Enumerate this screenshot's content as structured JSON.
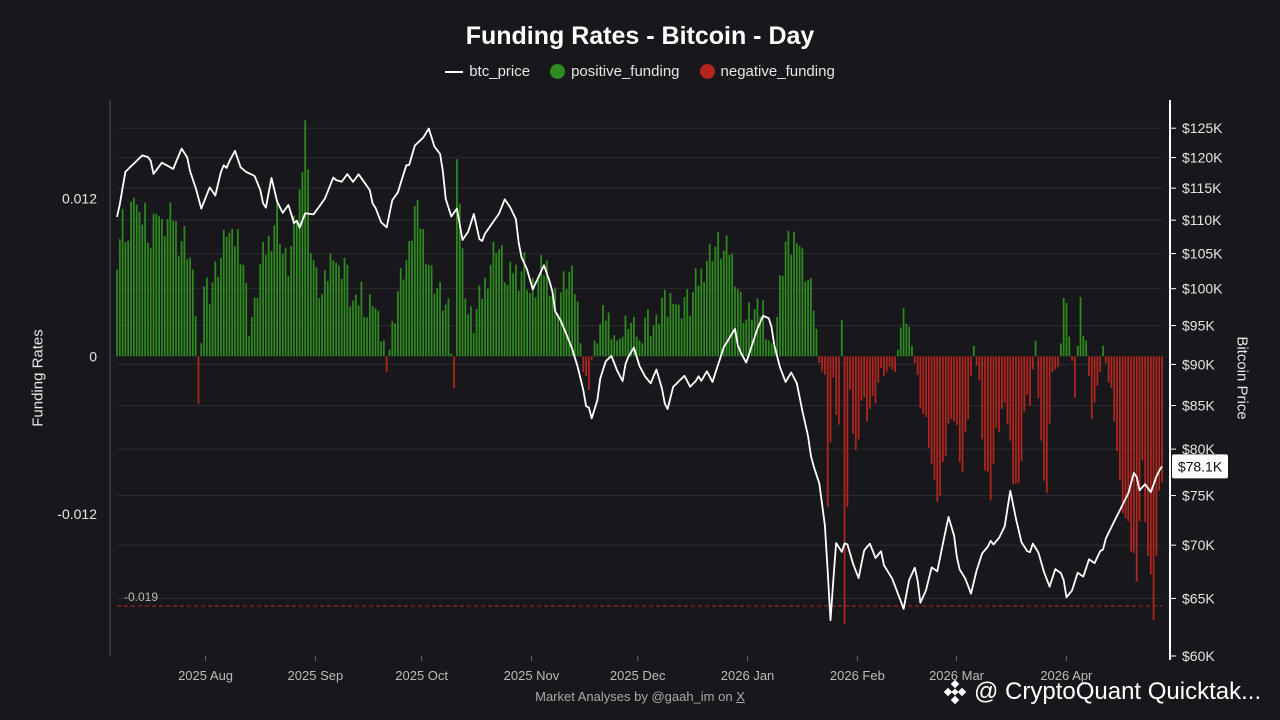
{
  "chart_data": {
    "type": "bar",
    "title": "Funding Rates - Bitcoin - Day",
    "legend": [
      {
        "name": "btc_price",
        "kind": "line",
        "color": "#ffffff"
      },
      {
        "name": "positive_funding",
        "kind": "dot",
        "color": "#2e8b1e"
      },
      {
        "name": "negative_funding",
        "kind": "dot",
        "color": "#b3261e"
      }
    ],
    "ylabel_left": "Funding Rates",
    "ylabel_right": "Bitcoin Price",
    "left_axis": {
      "ticks": [
        0.012,
        0,
        -0.012
      ],
      "tick_labels": [
        "0.012",
        "0",
        "-0.012"
      ],
      "range": [
        -0.0228,
        0.0195
      ]
    },
    "right_axis": {
      "ticks": [
        125000,
        120000,
        115000,
        110000,
        105000,
        100000,
        95000,
        90000,
        85000,
        80000,
        75000,
        70000,
        65000,
        60000
      ],
      "tick_labels": [
        "$125K",
        "$120K",
        "$115K",
        "$110K",
        "$105K",
        "$100K",
        "$95K",
        "$90K",
        "$85K",
        "$80K",
        "$75K",
        "$70K",
        "$65K",
        "$60K"
      ],
      "scale": "log",
      "range": [
        60000,
        130000
      ]
    },
    "x_axis": {
      "start_date": "2025-07-07",
      "days": 295,
      "tick_labels": [
        "2025 Aug",
        "2025 Sep",
        "2025 Oct",
        "2025 Nov",
        "2025 Dec",
        "2026 Jan",
        "2026 Feb",
        "2026 Mar",
        "2026 Apr"
      ]
    },
    "reference_line": {
      "value": -0.019,
      "label": "-0.019"
    },
    "current_price_label": "$78.1K",
    "price_anchors": [
      [
        0,
        110500
      ],
      [
        3,
        118000
      ],
      [
        6,
        119000
      ],
      [
        9,
        120000
      ],
      [
        11,
        119500
      ],
      [
        13,
        118000
      ],
      [
        16,
        119500
      ],
      [
        20,
        118000
      ],
      [
        23,
        121000
      ],
      [
        26,
        118500
      ],
      [
        28,
        115500
      ],
      [
        30,
        112000
      ],
      [
        33,
        115000
      ],
      [
        35,
        113500
      ],
      [
        37,
        117000
      ],
      [
        40,
        120000
      ],
      [
        42,
        121500
      ],
      [
        44,
        118500
      ],
      [
        46,
        117500
      ],
      [
        49,
        116500
      ],
      [
        51,
        114000
      ],
      [
        53,
        112500
      ],
      [
        55,
        117000
      ],
      [
        57,
        113000
      ],
      [
        59,
        111000
      ],
      [
        61,
        112000
      ],
      [
        63,
        109000
      ],
      [
        65,
        109500
      ],
      [
        67,
        111500
      ],
      [
        70,
        111000
      ],
      [
        72,
        112000
      ],
      [
        74,
        113000
      ],
      [
        76,
        115000
      ],
      [
        78,
        117000
      ],
      [
        80,
        116500
      ],
      [
        82,
        117500
      ],
      [
        84,
        116000
      ],
      [
        86,
        117000
      ],
      [
        88,
        115500
      ],
      [
        90,
        114000
      ],
      [
        92,
        112500
      ],
      [
        94,
        110000
      ],
      [
        96,
        109000
      ],
      [
        98,
        113000
      ],
      [
        100,
        114000
      ],
      [
        103,
        118000
      ],
      [
        106,
        122500
      ],
      [
        109,
        123500
      ],
      [
        111,
        124800
      ],
      [
        113,
        121500
      ],
      [
        115,
        120000
      ],
      [
        117,
        114000
      ],
      [
        119,
        111000
      ],
      [
        121,
        112000
      ],
      [
        123,
        107000
      ],
      [
        125,
        108000
      ],
      [
        127,
        110500
      ],
      [
        129,
        106500
      ],
      [
        131,
        108500
      ],
      [
        133,
        109500
      ],
      [
        136,
        111000
      ],
      [
        138,
        113000
      ],
      [
        140,
        111500
      ],
      [
        142,
        109500
      ],
      [
        144,
        105000
      ],
      [
        146,
        103000
      ],
      [
        148,
        100000
      ],
      [
        150,
        101500
      ],
      [
        152,
        103000
      ],
      [
        154,
        100500
      ],
      [
        156,
        97500
      ],
      [
        158,
        96000
      ],
      [
        160,
        94000
      ],
      [
        162,
        92000
      ],
      [
        164,
        89500
      ],
      [
        166,
        86500
      ],
      [
        167,
        84500
      ],
      [
        169,
        84000
      ],
      [
        171,
        86000
      ],
      [
        172,
        88500
      ],
      [
        174,
        90500
      ],
      [
        176,
        91000
      ],
      [
        178,
        89000
      ],
      [
        180,
        87500
      ],
      [
        182,
        91500
      ],
      [
        184,
        92500
      ],
      [
        186,
        90000
      ],
      [
        188,
        88500
      ],
      [
        190,
        87500
      ],
      [
        192,
        89000
      ],
      [
        194,
        86500
      ],
      [
        196,
        85000
      ],
      [
        198,
        87500
      ],
      [
        200,
        88000
      ],
      [
        202,
        88500
      ],
      [
        204,
        87000
      ],
      [
        206,
        87500
      ],
      [
        208,
        88500
      ],
      [
        210,
        89500
      ],
      [
        212,
        88000
      ],
      [
        214,
        90000
      ],
      [
        216,
        92000
      ],
      [
        218,
        93000
      ],
      [
        220,
        94000
      ],
      [
        222,
        92000
      ],
      [
        224,
        90500
      ],
      [
        226,
        92500
      ],
      [
        228,
        94500
      ],
      [
        230,
        96000
      ],
      [
        232,
        95500
      ],
      [
        234,
        93000
      ],
      [
        236,
        90000
      ],
      [
        238,
        88000
      ],
      [
        240,
        89000
      ],
      [
        242,
        87500
      ],
      [
        244,
        84000
      ],
      [
        246,
        81000
      ],
      [
        248,
        78500
      ],
      [
        250,
        76500
      ],
      [
        252,
        72000
      ],
      [
        254,
        63000
      ],
      [
        256,
        70000
      ],
      [
        258,
        69000
      ],
      [
        260,
        70500
      ],
      [
        262,
        68500
      ],
      [
        264,
        67000
      ],
      [
        266,
        69500
      ],
      [
        268,
        70000
      ],
      [
        270,
        68500
      ],
      [
        272,
        69000
      ],
      [
        274,
        68000
      ],
      [
        276,
        67000
      ],
      [
        278,
        65500
      ],
      [
        280,
        64000
      ],
      [
        282,
        66500
      ],
      [
        284,
        67500
      ],
      [
        286,
        65000
      ],
      [
        288,
        66000
      ],
      [
        290,
        68000
      ],
      [
        292,
        67500
      ],
      [
        294,
        70000
      ],
      [
        296,
        72500
      ],
      [
        298,
        70500
      ],
      [
        300,
        68000
      ],
      [
        302,
        67000
      ],
      [
        304,
        65500
      ],
      [
        306,
        67500
      ],
      [
        308,
        69000
      ],
      [
        310,
        69500
      ],
      [
        312,
        70500
      ],
      [
        314,
        71000
      ],
      [
        316,
        72000
      ],
      [
        318,
        75500
      ],
      [
        320,
        72500
      ],
      [
        322,
        70000
      ],
      [
        324,
        69000
      ],
      [
        326,
        70500
      ],
      [
        328,
        69500
      ],
      [
        330,
        67500
      ],
      [
        332,
        66000
      ],
      [
        334,
        67500
      ],
      [
        336,
        67000
      ],
      [
        338,
        65500
      ],
      [
        340,
        66000
      ],
      [
        342,
        67500
      ],
      [
        344,
        67000
      ],
      [
        346,
        68500
      ],
      [
        348,
        68000
      ],
      [
        350,
        69000
      ],
      [
        352,
        71000
      ],
      [
        354,
        72000
      ],
      [
        356,
        73000
      ],
      [
        358,
        74000
      ],
      [
        360,
        75000
      ],
      [
        362,
        77000
      ],
      [
        364,
        76000
      ],
      [
        366,
        76500
      ],
      [
        368,
        75500
      ],
      [
        370,
        77000
      ],
      [
        372,
        78100
      ]
    ],
    "funding_anchors": [
      [
        0,
        0.0078
      ],
      [
        2,
        0.0105
      ],
      [
        4,
        0.0088
      ],
      [
        6,
        0.0128
      ],
      [
        8,
        0.0098
      ],
      [
        10,
        0.0112
      ],
      [
        12,
        0.0085
      ],
      [
        14,
        0.0118
      ],
      [
        16,
        0.0095
      ],
      [
        18,
        0.0102
      ],
      [
        20,
        0.0108
      ],
      [
        22,
        0.0088
      ],
      [
        24,
        0.0092
      ],
      [
        26,
        0.0075
      ],
      [
        28,
        0.0038
      ],
      [
        29,
        -0.0038
      ],
      [
        31,
        0.0058
      ],
      [
        33,
        0.0052
      ],
      [
        35,
        0.0065
      ],
      [
        37,
        0.0075
      ],
      [
        39,
        0.0098
      ],
      [
        41,
        0.0085
      ],
      [
        43,
        0.0092
      ],
      [
        45,
        0.0072
      ],
      [
        47,
        0.0025
      ],
      [
        49,
        0.0035
      ],
      [
        51,
        0.0068
      ],
      [
        53,
        0.0082
      ],
      [
        55,
        0.0092
      ],
      [
        57,
        0.0112
      ],
      [
        59,
        0.0078
      ],
      [
        61,
        0.0068
      ],
      [
        63,
        0.0095
      ],
      [
        65,
        0.0122
      ],
      [
        67,
        0.0182
      ],
      [
        69,
        0.0088
      ],
      [
        71,
        0.0058
      ],
      [
        73,
        0.0045
      ],
      [
        75,
        0.0062
      ],
      [
        77,
        0.0085
      ],
      [
        79,
        0.0062
      ],
      [
        81,
        0.0075
      ],
      [
        83,
        0.0045
      ],
      [
        85,
        0.0035
      ],
      [
        87,
        0.0052
      ],
      [
        89,
        0.0032
      ],
      [
        91,
        0.0048
      ],
      [
        93,
        0.0025
      ],
      [
        95,
        0.0012
      ],
      [
        96,
        -0.0012
      ],
      [
        98,
        0.0022
      ],
      [
        100,
        0.0052
      ],
      [
        102,
        0.0068
      ],
      [
        104,
        0.0078
      ],
      [
        106,
        0.0112
      ],
      [
        108,
        0.0102
      ],
      [
        110,
        0.0082
      ],
      [
        112,
        0.0062
      ],
      [
        114,
        0.0052
      ],
      [
        116,
        0.0042
      ],
      [
        118,
        0.0032
      ],
      [
        120,
        -0.0028
      ],
      [
        121,
        0.0162
      ],
      [
        123,
        0.0075
      ],
      [
        125,
        0.0032
      ],
      [
        127,
        0.0025
      ],
      [
        129,
        0.0042
      ],
      [
        131,
        0.0055
      ],
      [
        133,
        0.0072
      ],
      [
        135,
        0.0088
      ],
      [
        137,
        0.0075
      ],
      [
        139,
        0.0052
      ],
      [
        141,
        0.0068
      ],
      [
        143,
        0.0062
      ],
      [
        145,
        0.0072
      ],
      [
        147,
        0.0048
      ],
      [
        149,
        0.0052
      ],
      [
        151,
        0.0065
      ],
      [
        153,
        0.0068
      ],
      [
        155,
        0.0048
      ],
      [
        157,
        0.0042
      ],
      [
        159,
        0.0055
      ],
      [
        161,
        0.0062
      ],
      [
        163,
        0.0052
      ],
      [
        165,
        0.0022
      ],
      [
        166,
        -0.0012
      ],
      [
        168,
        -0.0018
      ],
      [
        170,
        0.0012
      ],
      [
        172,
        0.0022
      ],
      [
        174,
        0.0032
      ],
      [
        176,
        0.0025
      ],
      [
        178,
        0.0012
      ],
      [
        180,
        0.0015
      ],
      [
        182,
        0.0028
      ],
      [
        184,
        0.0018
      ],
      [
        186,
        0.0012
      ],
      [
        188,
        0.0032
      ],
      [
        190,
        0.0025
      ],
      [
        192,
        0.0022
      ],
      [
        194,
        0.0042
      ],
      [
        196,
        0.0035
      ],
      [
        198,
        0.0052
      ],
      [
        200,
        0.0032
      ],
      [
        202,
        0.0045
      ],
      [
        204,
        0.0038
      ],
      [
        206,
        0.0055
      ],
      [
        208,
        0.0062
      ],
      [
        210,
        0.0075
      ],
      [
        212,
        0.0082
      ],
      [
        214,
        0.0085
      ],
      [
        216,
        0.0078
      ],
      [
        218,
        0.0082
      ],
      [
        220,
        0.0065
      ],
      [
        222,
        0.0042
      ],
      [
        224,
        0.0028
      ],
      [
        226,
        0.0035
      ],
      [
        228,
        0.0032
      ],
      [
        230,
        0.0038
      ],
      [
        232,
        0.0012
      ],
      [
        234,
        0.0008
      ],
      [
        236,
        0.0052
      ],
      [
        238,
        0.0085
      ],
      [
        240,
        0.0082
      ],
      [
        242,
        0.0098
      ],
      [
        244,
        0.0075
      ],
      [
        246,
        0.0058
      ],
      [
        248,
        0.0042
      ],
      [
        250,
        -0.0005
      ],
      [
        252,
        -0.0018
      ],
      [
        253,
        -0.0105
      ],
      [
        255,
        -0.0022
      ],
      [
        257,
        -0.0052
      ],
      [
        258,
        0.0018
      ],
      [
        259,
        -0.0198
      ],
      [
        261,
        -0.0035
      ],
      [
        263,
        -0.0075
      ],
      [
        265,
        -0.0032
      ],
      [
        267,
        -0.0042
      ],
      [
        269,
        -0.0038
      ],
      [
        271,
        -0.0022
      ],
      [
        273,
        -0.0015
      ],
      [
        275,
        -0.0008
      ],
      [
        277,
        -0.0012
      ],
      [
        279,
        0.0022
      ],
      [
        281,
        0.0032
      ],
      [
        283,
        0.0008
      ],
      [
        285,
        -0.0018
      ],
      [
        287,
        -0.0042
      ],
      [
        289,
        -0.0062
      ],
      [
        291,
        -0.0102
      ],
      [
        293,
        -0.0108
      ],
      [
        295,
        -0.0072
      ],
      [
        297,
        -0.0038
      ],
      [
        299,
        -0.0058
      ],
      [
        301,
        -0.0088
      ],
      [
        303,
        -0.0042
      ],
      [
        305,
        0.0008
      ],
      [
        307,
        -0.0022
      ],
      [
        309,
        -0.0085
      ],
      [
        311,
        -0.0102
      ],
      [
        313,
        -0.0062
      ],
      [
        315,
        -0.0042
      ],
      [
        317,
        -0.0048
      ],
      [
        319,
        -0.0088
      ],
      [
        321,
        -0.0102
      ],
      [
        323,
        -0.0042
      ],
      [
        325,
        -0.0032
      ],
      [
        327,
        0.0012
      ],
      [
        329,
        -0.0068
      ],
      [
        331,
        -0.0102
      ],
      [
        333,
        -0.0012
      ],
      [
        335,
        -0.0008
      ],
      [
        337,
        0.0042
      ],
      [
        339,
        0.0015
      ],
      [
        341,
        -0.0022
      ],
      [
        343,
        0.0038
      ],
      [
        345,
        0.0012
      ],
      [
        347,
        -0.0042
      ],
      [
        349,
        -0.0032
      ],
      [
        351,
        0.0008
      ],
      [
        353,
        -0.0018
      ],
      [
        355,
        -0.0042
      ],
      [
        357,
        -0.0102
      ],
      [
        359,
        -0.0125
      ],
      [
        361,
        -0.0145
      ],
      [
        363,
        -0.0162
      ],
      [
        365,
        -0.0085
      ],
      [
        367,
        -0.0152
      ],
      [
        369,
        -0.0195
      ],
      [
        371,
        -0.0112
      ],
      [
        372,
        -0.0092
      ]
    ]
  },
  "footer": {
    "prefix": "Market Analyses by @gaah_im on ",
    "link": "X"
  },
  "watermark": {
    "text": "@ CryptoQuant Quicktak..."
  }
}
